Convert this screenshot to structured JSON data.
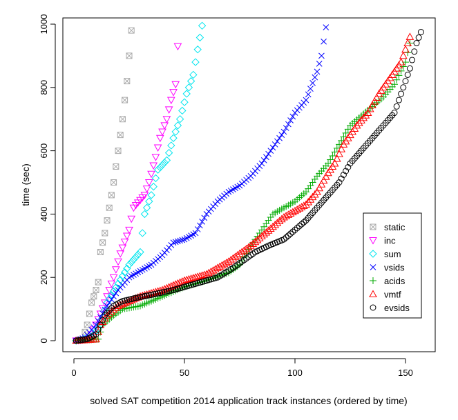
{
  "chart_data": {
    "type": "scatter",
    "title": "",
    "xlabel": "solved SAT competition 2014 application track instances (ordered by time)",
    "ylabel": "time (sec)",
    "xlim": [
      0,
      160
    ],
    "ylim": [
      0,
      1000
    ],
    "x_ticks": [
      0,
      50,
      100,
      150
    ],
    "y_ticks": [
      0,
      200,
      400,
      600,
      800,
      1000
    ],
    "grid": false,
    "legend_position": "right",
    "series": [
      {
        "name": "static",
        "color": "#aaaaaa",
        "marker": "box-x",
        "curve": [
          [
            1,
            0
          ],
          [
            4,
            5
          ],
          [
            6,
            50
          ],
          [
            8,
            120
          ],
          [
            10,
            160
          ],
          [
            11,
            185
          ],
          [
            12,
            280
          ],
          [
            14,
            340
          ],
          [
            16,
            420
          ],
          [
            18,
            500
          ],
          [
            20,
            600
          ],
          [
            22,
            700
          ],
          [
            24,
            820
          ],
          [
            26,
            980
          ]
        ]
      },
      {
        "name": "inc",
        "color": "#ff00ff",
        "marker": "triangle-down",
        "curve": [
          [
            1,
            0
          ],
          [
            7,
            5
          ],
          [
            10,
            50
          ],
          [
            14,
            120
          ],
          [
            18,
            200
          ],
          [
            21,
            275
          ],
          [
            25,
            350
          ],
          [
            27,
            420
          ],
          [
            32,
            460
          ],
          [
            34,
            500
          ],
          [
            37,
            580
          ],
          [
            39,
            640
          ],
          [
            42,
            700
          ],
          [
            44,
            760
          ],
          [
            46,
            810
          ],
          [
            47,
            930
          ]
        ]
      },
      {
        "name": "sum",
        "color": "#00e5ee",
        "marker": "diamond",
        "curve": [
          [
            1,
            0
          ],
          [
            8,
            10
          ],
          [
            12,
            50
          ],
          [
            15,
            120
          ],
          [
            20,
            180
          ],
          [
            25,
            240
          ],
          [
            30,
            280
          ],
          [
            32,
            400
          ],
          [
            35,
            460
          ],
          [
            38,
            540
          ],
          [
            42,
            570
          ],
          [
            45,
            640
          ],
          [
            48,
            700
          ],
          [
            51,
            780
          ],
          [
            54,
            840
          ],
          [
            56,
            920
          ],
          [
            58,
            995
          ]
        ]
      },
      {
        "name": "vsids",
        "color": "#0000ff",
        "marker": "x",
        "curve": [
          [
            1,
            0
          ],
          [
            5,
            10
          ],
          [
            10,
            50
          ],
          [
            15,
            110
          ],
          [
            20,
            160
          ],
          [
            25,
            200
          ],
          [
            30,
            220
          ],
          [
            35,
            240
          ],
          [
            40,
            270
          ],
          [
            45,
            310
          ],
          [
            50,
            320
          ],
          [
            55,
            340
          ],
          [
            60,
            400
          ],
          [
            65,
            440
          ],
          [
            70,
            470
          ],
          [
            75,
            490
          ],
          [
            80,
            520
          ],
          [
            85,
            560
          ],
          [
            90,
            610
          ],
          [
            95,
            660
          ],
          [
            100,
            720
          ],
          [
            105,
            760
          ],
          [
            110,
            850
          ],
          [
            112,
            900
          ],
          [
            114,
            990
          ]
        ]
      },
      {
        "name": "acids",
        "color": "#00aa00",
        "marker": "plus",
        "curve": [
          [
            1,
            0
          ],
          [
            11,
            5
          ],
          [
            13,
            50
          ],
          [
            18,
            80
          ],
          [
            22,
            100
          ],
          [
            30,
            110
          ],
          [
            40,
            140
          ],
          [
            50,
            170
          ],
          [
            60,
            190
          ],
          [
            70,
            215
          ],
          [
            75,
            240
          ],
          [
            80,
            300
          ],
          [
            85,
            350
          ],
          [
            90,
            400
          ],
          [
            95,
            420
          ],
          [
            100,
            440
          ],
          [
            105,
            470
          ],
          [
            110,
            520
          ],
          [
            115,
            560
          ],
          [
            120,
            620
          ],
          [
            125,
            680
          ],
          [
            130,
            710
          ],
          [
            135,
            740
          ],
          [
            140,
            770
          ],
          [
            145,
            810
          ],
          [
            150,
            880
          ],
          [
            152,
            940
          ]
        ]
      },
      {
        "name": "vmtf",
        "color": "#ff0000",
        "marker": "triangle-up",
        "curve": [
          [
            1,
            0
          ],
          [
            10,
            5
          ],
          [
            12,
            50
          ],
          [
            15,
            80
          ],
          [
            20,
            110
          ],
          [
            30,
            140
          ],
          [
            40,
            160
          ],
          [
            50,
            190
          ],
          [
            60,
            210
          ],
          [
            70,
            250
          ],
          [
            76,
            280
          ],
          [
            80,
            300
          ],
          [
            85,
            330
          ],
          [
            90,
            360
          ],
          [
            95,
            390
          ],
          [
            100,
            410
          ],
          [
            105,
            430
          ],
          [
            110,
            470
          ],
          [
            115,
            530
          ],
          [
            118,
            560
          ],
          [
            122,
            620
          ],
          [
            128,
            680
          ],
          [
            133,
            720
          ],
          [
            138,
            780
          ],
          [
            142,
            820
          ],
          [
            148,
            880
          ],
          [
            152,
            960
          ]
        ]
      },
      {
        "name": "evsids",
        "color": "#000000",
        "marker": "circle",
        "curve": [
          [
            1,
            0
          ],
          [
            6,
            5
          ],
          [
            10,
            20
          ],
          [
            14,
            80
          ],
          [
            18,
            110
          ],
          [
            22,
            125
          ],
          [
            28,
            135
          ],
          [
            35,
            145
          ],
          [
            45,
            160
          ],
          [
            55,
            180
          ],
          [
            65,
            200
          ],
          [
            72,
            230
          ],
          [
            78,
            260
          ],
          [
            82,
            280
          ],
          [
            88,
            300
          ],
          [
            95,
            320
          ],
          [
            100,
            350
          ],
          [
            105,
            380
          ],
          [
            110,
            420
          ],
          [
            115,
            460
          ],
          [
            120,
            500
          ],
          [
            125,
            560
          ],
          [
            130,
            600
          ],
          [
            135,
            640
          ],
          [
            140,
            680
          ],
          [
            145,
            720
          ],
          [
            148,
            780
          ],
          [
            152,
            860
          ],
          [
            155,
            940
          ],
          [
            157,
            975
          ]
        ]
      }
    ]
  }
}
